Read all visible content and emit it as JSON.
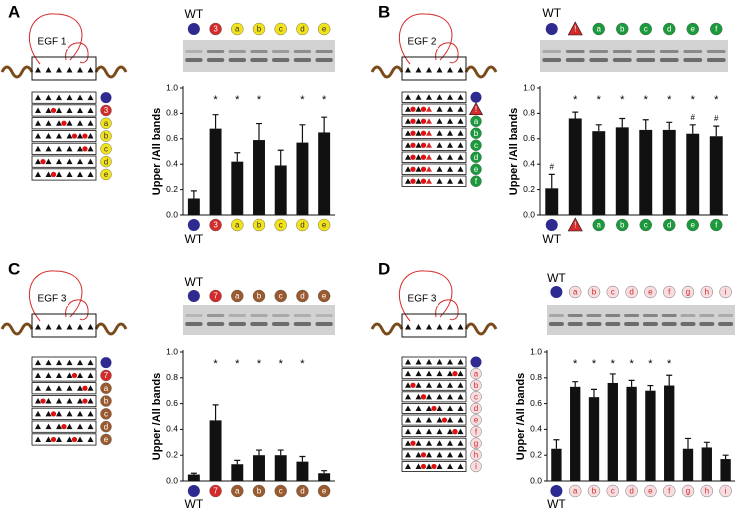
{
  "chart_data": [
    {
      "type": "bar",
      "panel": "A",
      "domain_label": "EGF 1",
      "ylabel": "Upper /All bands",
      "categories": [
        "WT",
        "3",
        "a",
        "b",
        "c",
        "d",
        "e"
      ],
      "values": [
        0.13,
        0.68,
        0.42,
        0.59,
        0.39,
        0.57,
        0.65
      ],
      "errors": [
        0.06,
        0.11,
        0.07,
        0.13,
        0.12,
        0.14,
        0.12
      ],
      "stars": [
        null,
        "*",
        "*",
        "*",
        null,
        "*",
        "*"
      ],
      "color": "#111111",
      "category_colors": [
        "#2e2a8f",
        "#d42a2a",
        "#f2e21a",
        "#f2e21a",
        "#f2e21a",
        "#f2e21a",
        "#f2e21a"
      ],
      "category_text_colors": [
        "#ffffff",
        "#ffffff",
        "#333333",
        "#333333",
        "#333333",
        "#333333",
        "#333333"
      ],
      "ylim": [
        0,
        1
      ],
      "yticks": [
        {
          "value": 0,
          "label": "0.0"
        },
        {
          "value": 0.2,
          "label": "0.2"
        },
        {
          "value": 0.4,
          "label": "0.4"
        },
        {
          "value": 0.6,
          "label": "0.6"
        },
        {
          "value": 0.8,
          "label": "0.8"
        },
        {
          "value": 1,
          "label": "1.0"
        }
      ]
    },
    {
      "type": "bar",
      "panel": "B",
      "domain_label": "EGF 2",
      "ylabel": "Upper /All bands",
      "categories": [
        "WT",
        "!",
        "a",
        "b",
        "c",
        "d",
        "e",
        "f"
      ],
      "values": [
        0.21,
        0.76,
        0.66,
        0.69,
        0.67,
        0.67,
        0.64,
        0.62
      ],
      "errors": [
        0.11,
        0.05,
        0.05,
        0.07,
        0.08,
        0.06,
        0.07,
        0.08
      ],
      "stars": [
        null,
        "*",
        "*",
        "*",
        "*",
        "*",
        "*",
        "*"
      ],
      "hashes": [
        "#",
        null,
        null,
        null,
        null,
        null,
        "#",
        "#"
      ],
      "color": "#111111",
      "category_colors": [
        "#2e2a8f",
        "#d42a2a",
        "#1a9a3a",
        "#1a9a3a",
        "#1a9a3a",
        "#1a9a3a",
        "#1a9a3a",
        "#1a9a3a"
      ],
      "category_text_colors": [
        "#ffffff",
        "#ffffff",
        "#ffffff",
        "#ffffff",
        "#ffffff",
        "#ffffff",
        "#ffffff",
        "#ffffff"
      ],
      "ylim": [
        0,
        1
      ],
      "yticks": [
        {
          "value": 0,
          "label": "0.0"
        },
        {
          "value": 0.2,
          "label": "0.2"
        },
        {
          "value": 0.4,
          "label": "0.4"
        },
        {
          "value": 0.6,
          "label": "0.6"
        },
        {
          "value": 0.8,
          "label": "0.8"
        },
        {
          "value": 1,
          "label": "1.0"
        }
      ]
    },
    {
      "type": "bar",
      "panel": "C",
      "domain_label": "EGF 3",
      "ylabel": "Upper /All bands",
      "categories": [
        "WT",
        "7",
        "a",
        "b",
        "c",
        "d",
        "e"
      ],
      "values": [
        0.05,
        0.47,
        0.13,
        0.2,
        0.2,
        0.15,
        0.06
      ],
      "errors": [
        0.01,
        0.12,
        0.03,
        0.04,
        0.04,
        0.04,
        0.02
      ],
      "stars": [
        null,
        "*",
        "*",
        "*",
        "*",
        "*",
        null
      ],
      "color": "#111111",
      "category_colors": [
        "#2e2a8f",
        "#d42a2a",
        "#9a5a2e",
        "#9a5a2e",
        "#9a5a2e",
        "#9a5a2e",
        "#9a5a2e"
      ],
      "category_text_colors": [
        "#ffffff",
        "#ffffff",
        "#ffffff",
        "#ffffff",
        "#ffffff",
        "#ffffff",
        "#ffffff"
      ],
      "ylim": [
        0,
        1
      ],
      "yticks": [
        {
          "value": 0,
          "label": "0.0"
        },
        {
          "value": 0.2,
          "label": "0.2"
        },
        {
          "value": 0.4,
          "label": "0.4"
        },
        {
          "value": 0.6,
          "label": "0.6"
        },
        {
          "value": 0.8,
          "label": "0.8"
        },
        {
          "value": 1,
          "label": "1.0"
        }
      ]
    },
    {
      "type": "bar",
      "panel": "D",
      "domain_label": "EGF 3",
      "ylabel": "Upper /All bands",
      "categories": [
        "WT",
        "a",
        "b",
        "c",
        "d",
        "e",
        "f",
        "g",
        "h",
        "i"
      ],
      "values": [
        0.25,
        0.73,
        0.65,
        0.76,
        0.73,
        0.7,
        0.74,
        0.25,
        0.26,
        0.17
      ],
      "errors": [
        0.07,
        0.04,
        0.06,
        0.07,
        0.05,
        0.04,
        0.08,
        0.08,
        0.04,
        0.03
      ],
      "stars": [
        null,
        "*",
        "*",
        "*",
        "*",
        "*",
        "*",
        null,
        null,
        null
      ],
      "color": "#111111",
      "category_colors": [
        "#2e2a8f",
        "#f6dde0",
        "#f6dde0",
        "#f6dde0",
        "#f6dde0",
        "#f6dde0",
        "#f6dde0",
        "#f6dde0",
        "#f6dde0",
        "#f6dde0"
      ],
      "category_text_colors": [
        "#ffffff",
        "#d42a2a",
        "#d42a2a",
        "#d42a2a",
        "#d42a2a",
        "#d42a2a",
        "#d42a2a",
        "#d42a2a",
        "#d42a2a",
        "#d42a2a"
      ],
      "ylim": [
        0,
        1
      ],
      "yticks": [
        {
          "value": 0,
          "label": "0.0"
        },
        {
          "value": 0.2,
          "label": "0.2"
        },
        {
          "value": 0.4,
          "label": "0.4"
        },
        {
          "value": 0.6,
          "label": "0.6"
        },
        {
          "value": 0.8,
          "label": "0.8"
        },
        {
          "value": 1,
          "label": "1.0"
        }
      ]
    }
  ]
}
